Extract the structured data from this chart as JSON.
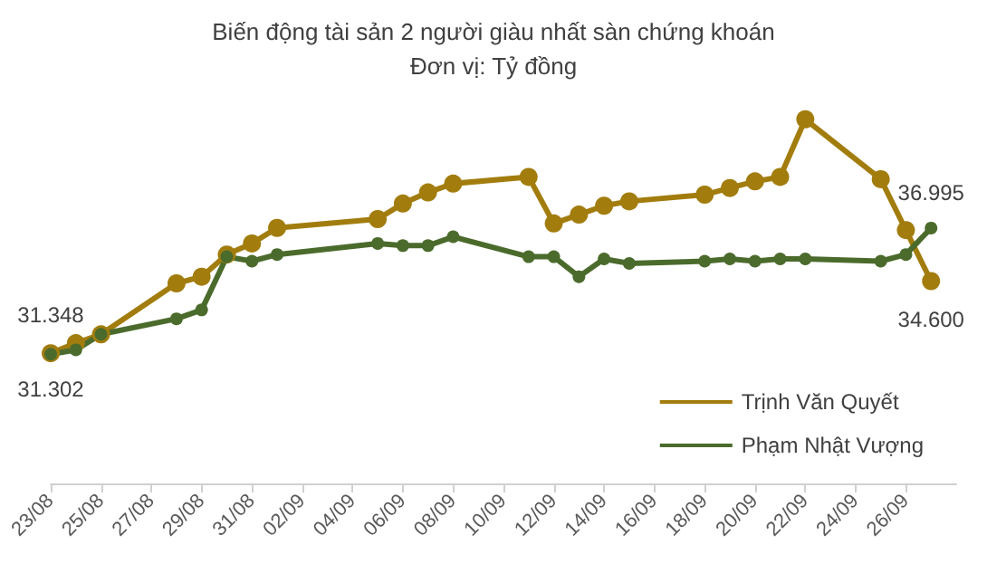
{
  "chart_data": {
    "type": "line",
    "title": "Biến động tài sản 2 người giàu nhất sàn chứng khoán",
    "subtitle": "Đơn vị: Tỷ đồng",
    "x": [
      "--08-23",
      "--08-24",
      "--08-25",
      "--08-28",
      "--08-29",
      "--08-30",
      "--08-31",
      "--09-01",
      "--09-05",
      "--09-06",
      "--09-07",
      "--09-08",
      "--09-11",
      "--09-12",
      "--09-13",
      "--09-14",
      "--09-15",
      "--09-18",
      "--09-19",
      "--09-20",
      "--09-21",
      "--09-22",
      "--09-25",
      "--09-26",
      "--09-27"
    ],
    "series": [
      {
        "name": "Trịnh Văn Quyết",
        "color": "#a27d0e",
        "values": [
          31.348,
          31.8,
          32.2,
          34.5,
          34.8,
          35.8,
          36.3,
          37.0,
          37.4,
          38.1,
          38.6,
          39.0,
          39.3,
          37.2,
          37.6,
          38.0,
          38.2,
          38.5,
          38.8,
          39.1,
          39.3,
          41.9,
          39.2,
          36.9,
          34.6
        ],
        "value_labels": [
          "31.348",
          null,
          null,
          null,
          null,
          null,
          null,
          null,
          null,
          null,
          null,
          null,
          null,
          null,
          null,
          null,
          null,
          null,
          null,
          null,
          null,
          null,
          null,
          null,
          "34.600"
        ]
      },
      {
        "name": "Phạm Nhật Vượng",
        "color": "#4b6b2c",
        "values": [
          31.302,
          31.5,
          32.2,
          32.9,
          33.3,
          35.7,
          35.5,
          35.8,
          36.3,
          36.2,
          36.2,
          36.6,
          35.7,
          35.7,
          34.8,
          35.6,
          35.4,
          35.5,
          35.6,
          35.5,
          35.6,
          35.6,
          35.5,
          35.8,
          36.995
        ],
        "value_labels": [
          "31.302",
          null,
          null,
          null,
          null,
          null,
          null,
          null,
          null,
          null,
          null,
          null,
          null,
          null,
          null,
          null,
          null,
          null,
          null,
          null,
          null,
          null,
          null,
          null,
          "36.995"
        ]
      }
    ],
    "xlim": [
      "--08-23",
      "--09-28"
    ],
    "xticks": [
      {
        "value": "--08-23",
        "label": "23/08"
      },
      {
        "value": "--08-25",
        "label": "25/08"
      },
      {
        "value": "--08-27",
        "label": "27/08"
      },
      {
        "value": "--08-29",
        "label": "29/08"
      },
      {
        "value": "--08-31",
        "label": "31/08"
      },
      {
        "value": "--09-02",
        "label": "02/09"
      },
      {
        "value": "--09-04",
        "label": "04/09"
      },
      {
        "value": "--09-06",
        "label": "06/09"
      },
      {
        "value": "--09-08",
        "label": "08/09"
      },
      {
        "value": "--09-10",
        "label": "10/09"
      },
      {
        "value": "--09-12",
        "label": "12/09"
      },
      {
        "value": "--09-14",
        "label": "14/09"
      },
      {
        "value": "--09-16",
        "label": "16/09"
      },
      {
        "value": "--09-18",
        "label": "18/09"
      },
      {
        "value": "--09-20",
        "label": "20/09"
      },
      {
        "value": "--09-22",
        "label": "22/09"
      },
      {
        "value": "--09-24",
        "label": "24/09"
      },
      {
        "value": "--09-26",
        "label": "26/09"
      }
    ],
    "legend": "right",
    "marker": "circle",
    "line_style": "solid",
    "grid": false
  }
}
